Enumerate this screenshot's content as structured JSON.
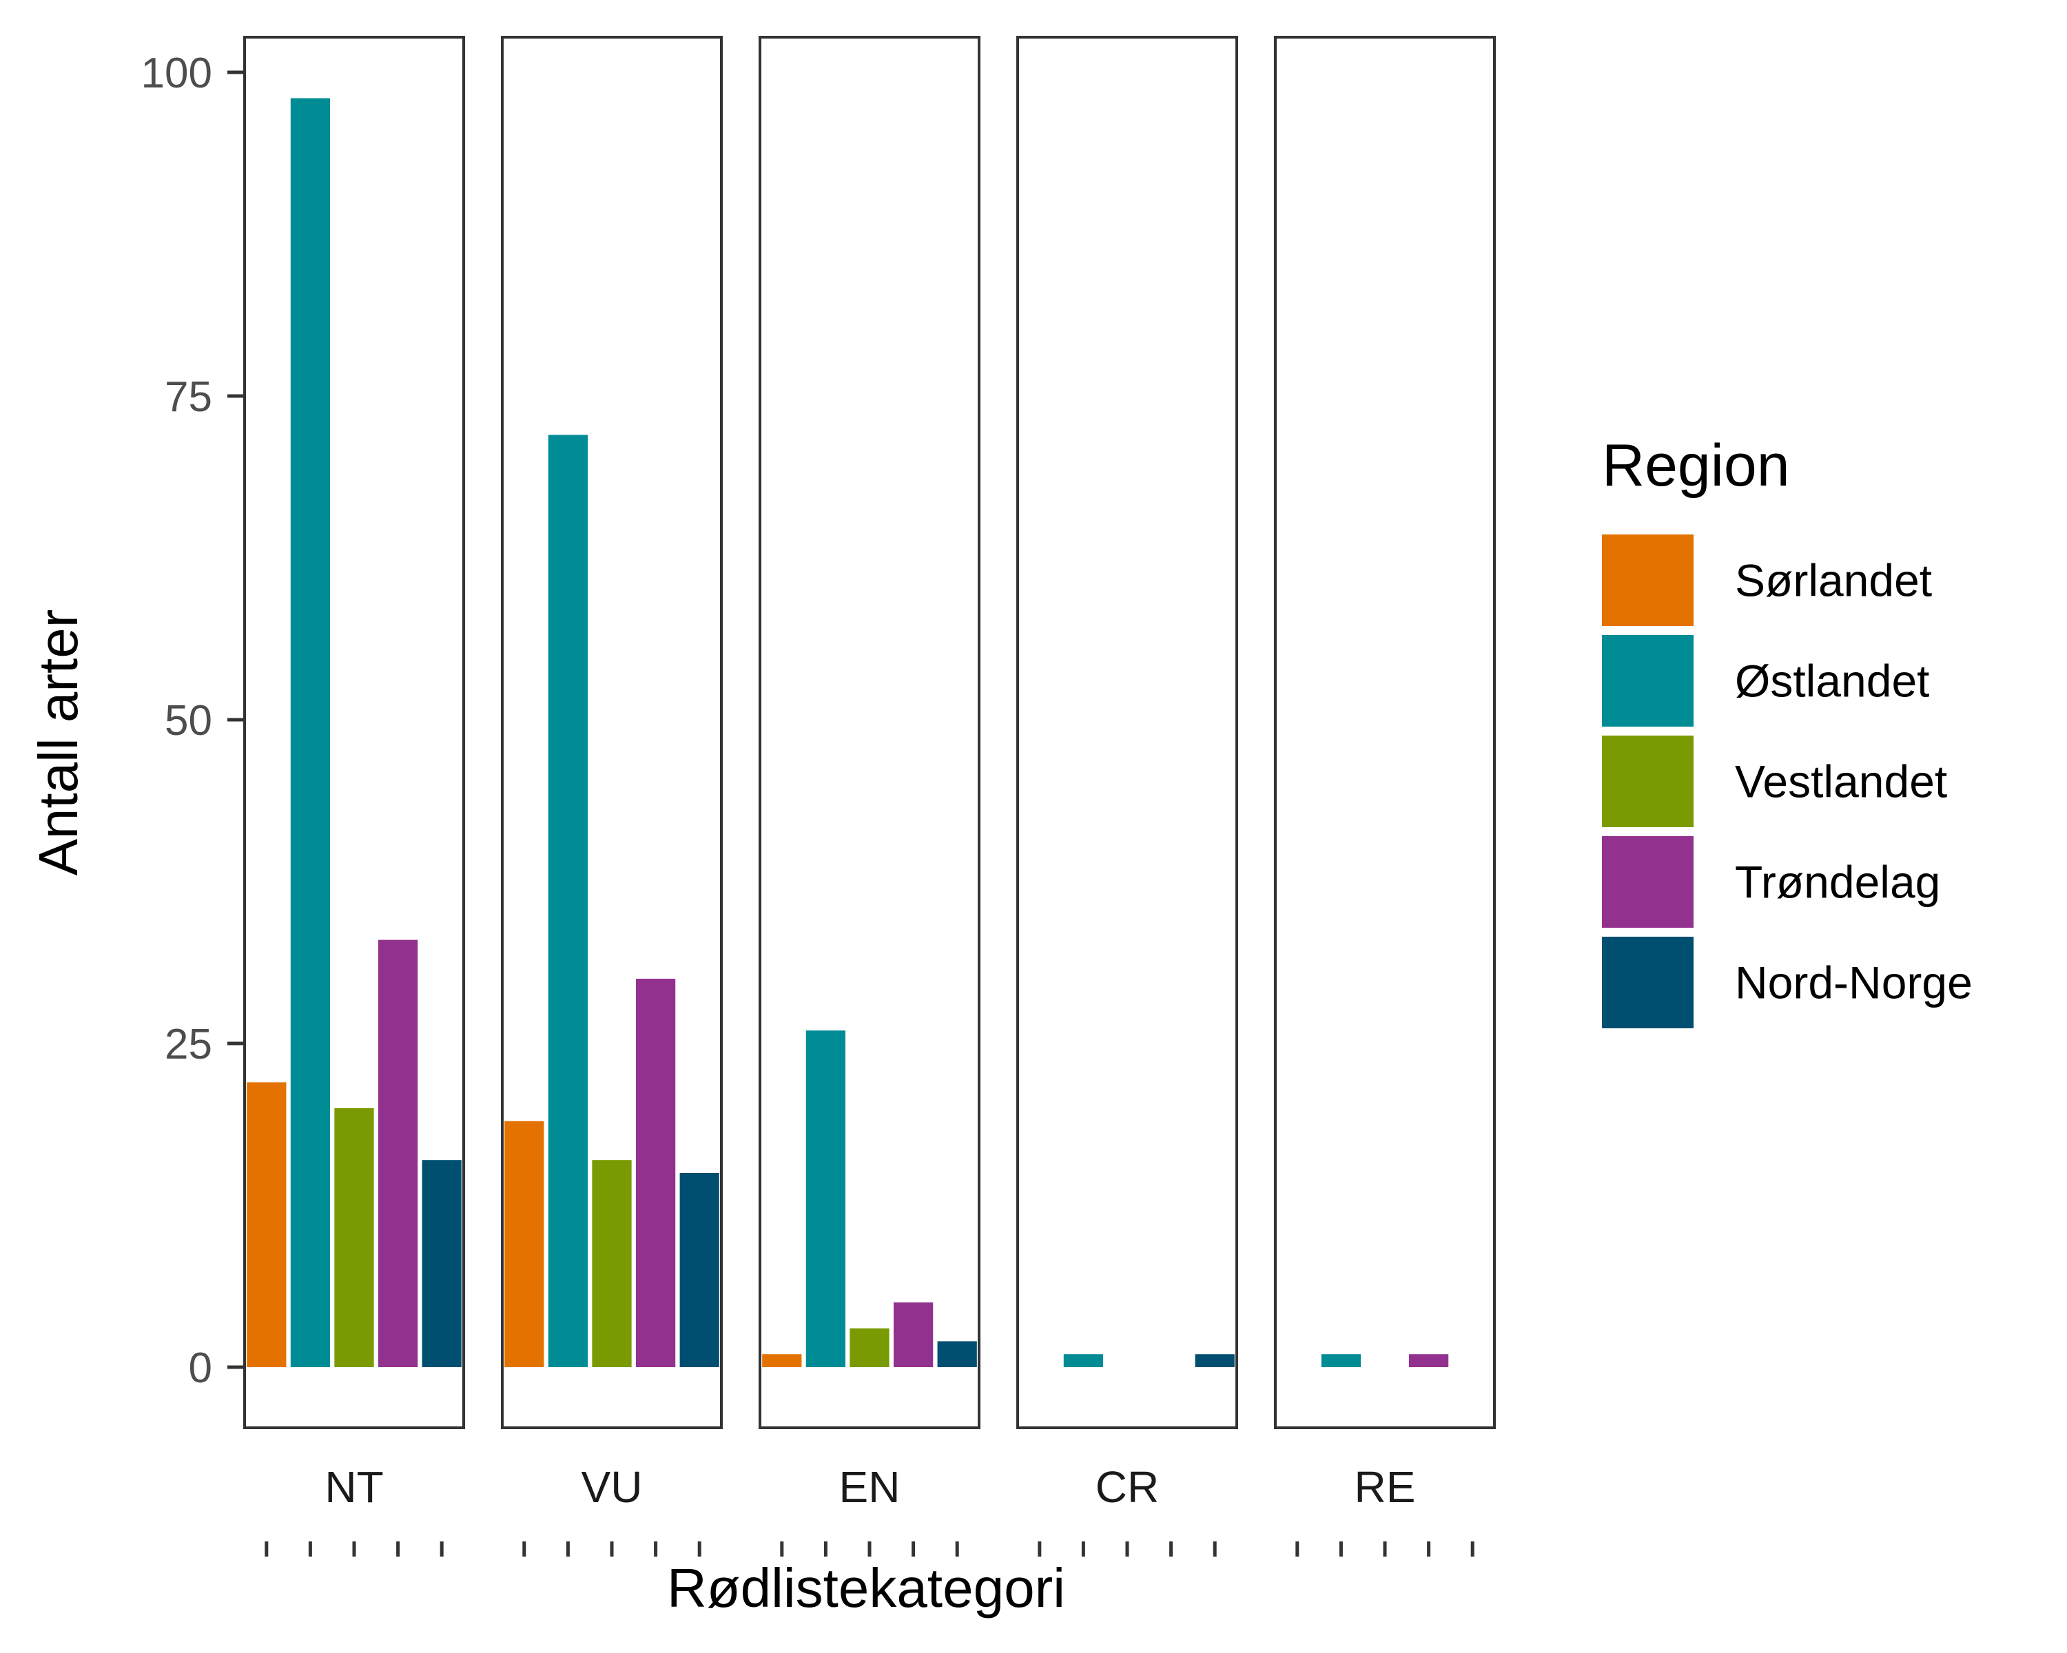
{
  "chart_data": {
    "type": "bar",
    "xlabel": "Rødlistekategori",
    "ylabel": "Antall arter",
    "ylim": [
      0,
      100
    ],
    "yticks": [
      0,
      25,
      50,
      75,
      100
    ],
    "grid": false,
    "legend_title": "Region",
    "legend_position": "right",
    "facets": [
      "NT",
      "VU",
      "EN",
      "CR",
      "RE"
    ],
    "series": [
      {
        "name": "Sørlandet",
        "color": "#E37200",
        "values": [
          22,
          19,
          1,
          0,
          0
        ]
      },
      {
        "name": "Østlandet",
        "color": "#008C95",
        "values": [
          98,
          72,
          26,
          1,
          1
        ]
      },
      {
        "name": "Vestlandet",
        "color": "#7A9A01",
        "values": [
          20,
          16,
          3,
          0,
          0
        ]
      },
      {
        "name": "Trøndelag",
        "color": "#93328E",
        "values": [
          33,
          30,
          5,
          0,
          1
        ]
      },
      {
        "name": "Nord-Norge",
        "color": "#004F71",
        "values": [
          16,
          15,
          2,
          1,
          0
        ]
      }
    ]
  }
}
